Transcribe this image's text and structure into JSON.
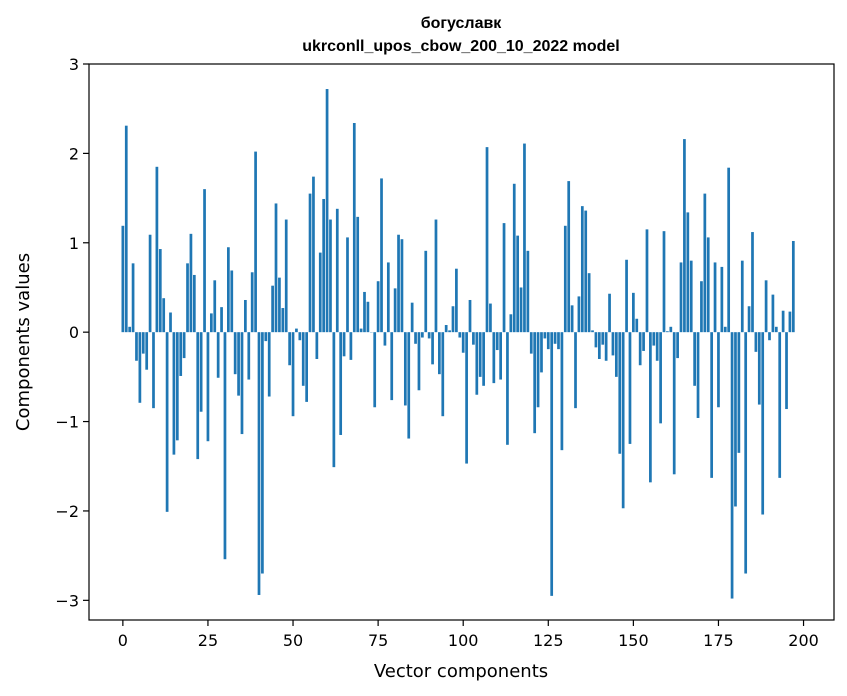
{
  "chart_data": {
    "type": "bar",
    "title": "богуславк",
    "subtitle": "ukrconll_upos_cbow_200_10_2022 model",
    "xlabel": "Vector components",
    "ylabel": "Components values",
    "xlim": [
      -9.95,
      208.95
    ],
    "ylim": [
      -3.22,
      3.0
    ],
    "xticks": [
      0,
      25,
      50,
      75,
      100,
      125,
      150,
      175,
      200
    ],
    "xtick_labels": [
      "0",
      "25",
      "50",
      "75",
      "100",
      "125",
      "150",
      "175",
      "200"
    ],
    "yticks": [
      -3,
      -2,
      -1,
      0,
      1,
      2,
      3
    ],
    "ytick_labels": [
      "−3",
      "−2",
      "−1",
      "0",
      "1",
      "2",
      "3"
    ],
    "bar_color": "#1f77b4",
    "values": [
      1.19,
      2.31,
      0.06,
      0.77,
      -0.32,
      -0.79,
      -0.24,
      -0.42,
      1.09,
      -0.85,
      1.85,
      0.93,
      0.38,
      -2.01,
      0.22,
      -1.37,
      -1.21,
      -0.49,
      -0.29,
      0.77,
      1.1,
      0.64,
      -1.42,
      -0.89,
      1.6,
      -1.22,
      0.21,
      0.58,
      -0.51,
      0.28,
      -2.54,
      0.95,
      0.69,
      -0.47,
      -0.71,
      -1.14,
      0.36,
      -0.53,
      0.67,
      2.02,
      -2.94,
      -2.7,
      -0.1,
      -0.72,
      0.52,
      1.44,
      0.61,
      0.27,
      1.26,
      -0.37,
      -0.94,
      0.04,
      -0.09,
      -0.6,
      -0.78,
      1.55,
      1.74,
      -0.3,
      0.89,
      1.49,
      2.72,
      1.26,
      -1.51,
      1.38,
      -1.15,
      -0.27,
      1.06,
      -0.31,
      2.34,
      1.29,
      0.04,
      0.45,
      0.34,
      0.0,
      -0.84,
      0.57,
      1.72,
      -0.15,
      0.78,
      -0.76,
      0.49,
      1.09,
      1.04,
      -0.82,
      -1.19,
      0.33,
      -0.13,
      -0.65,
      -0.06,
      0.91,
      -0.07,
      -0.36,
      1.26,
      -0.47,
      -0.94,
      0.08,
      0.02,
      0.29,
      0.71,
      -0.06,
      -0.23,
      -1.47,
      0.36,
      -0.14,
      -0.7,
      -0.5,
      -0.6,
      2.07,
      0.32,
      -0.57,
      -0.2,
      -0.53,
      1.22,
      -1.26,
      0.2,
      1.66,
      1.08,
      0.5,
      2.11,
      0.91,
      -0.24,
      -1.13,
      -0.84,
      -0.45,
      -0.07,
      -0.19,
      -2.95,
      -0.13,
      -0.19,
      -1.32,
      1.19,
      1.69,
      0.3,
      -0.85,
      0.4,
      1.41,
      1.36,
      0.66,
      0.02,
      -0.17,
      -0.3,
      -0.14,
      -0.32,
      0.43,
      -0.26,
      -0.5,
      -1.36,
      -1.97,
      0.81,
      -1.25,
      0.44,
      0.15,
      -0.37,
      -0.21,
      1.15,
      -1.68,
      -0.15,
      -0.32,
      -1.02,
      1.13,
      0.01,
      0.06,
      -1.59,
      -0.29,
      0.78,
      2.16,
      1.34,
      0.8,
      -0.6,
      -0.96,
      0.57,
      1.55,
      1.06,
      -1.63,
      0.78,
      -0.84,
      0.73,
      0.06,
      1.84,
      -2.98,
      -1.95,
      -1.35,
      0.8,
      -2.7,
      0.29,
      1.12,
      -0.22,
      -0.81,
      -2.04,
      0.58,
      -0.09,
      0.42,
      0.06,
      -1.63,
      0.24,
      -0.86,
      0.23,
      1.02
    ]
  }
}
